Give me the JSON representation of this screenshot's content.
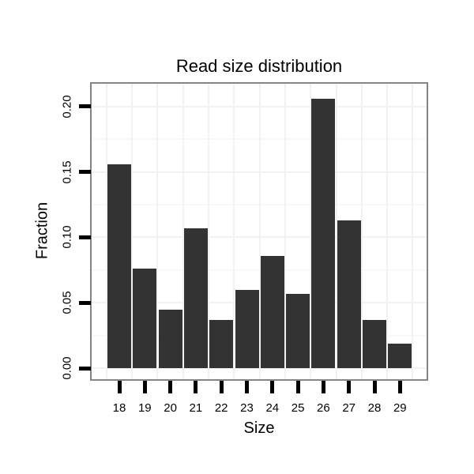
{
  "chart_data": {
    "type": "bar",
    "title": "Read size distribution",
    "xlabel": "Size",
    "ylabel": "Fraction",
    "categories": [
      "18",
      "19",
      "20",
      "21",
      "22",
      "23",
      "24",
      "25",
      "26",
      "27",
      "28",
      "29"
    ],
    "values": [
      0.156,
      0.076,
      0.045,
      0.107,
      0.037,
      0.06,
      0.086,
      0.057,
      0.206,
      0.113,
      0.037,
      0.019
    ],
    "ylim": [
      0,
      0.2175
    ],
    "yticks": [
      0.0,
      0.05,
      0.1,
      0.15,
      0.2
    ],
    "ytick_labels": [
      "0.00",
      "0.05",
      "0.10",
      "0.15",
      "0.20"
    ],
    "legend": "none",
    "grid": true,
    "colors": {
      "bar": "#333333",
      "panel_border": "#858585",
      "tick": "#000000",
      "grid_major": "#f2f2f2",
      "grid_minor": "#f8f8f8",
      "background": "#ffffff",
      "text": "#000000"
    }
  }
}
